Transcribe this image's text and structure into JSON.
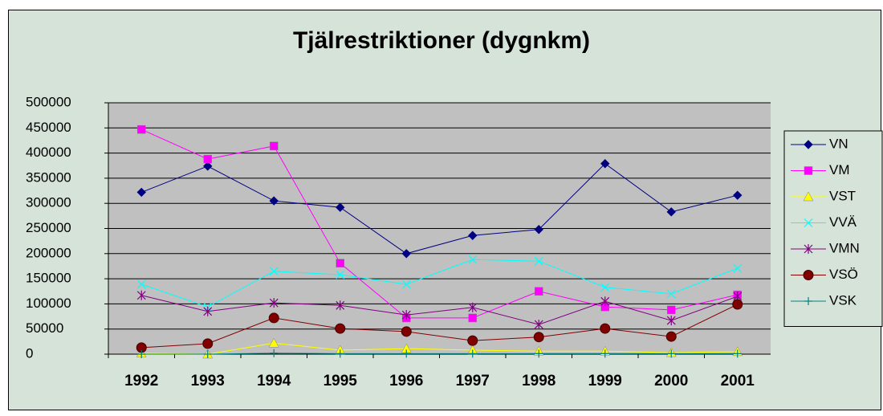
{
  "chart_data": {
    "type": "line",
    "title": "Tjälrestriktioner (dygnkm)",
    "categories": [
      "1992",
      "1993",
      "1994",
      "1995",
      "1996",
      "1997",
      "1998",
      "1999",
      "2000",
      "2001"
    ],
    "series": [
      {
        "name": "VN",
        "color": "#000080",
        "marker": "diamond",
        "values": [
          322000,
          374000,
          305000,
          292000,
          200000,
          236000,
          248000,
          379000,
          283000,
          316000
        ]
      },
      {
        "name": "VM",
        "color": "#ff00ff",
        "marker": "square",
        "values": [
          447000,
          388000,
          414000,
          181000,
          72000,
          72000,
          125000,
          94000,
          88000,
          118000
        ]
      },
      {
        "name": "VST",
        "color": "#ffff00",
        "marker": "triangle",
        "values": [
          2000,
          0,
          22000,
          8000,
          11000,
          8000,
          6000,
          6000,
          3000,
          5000
        ]
      },
      {
        "name": "VVÄ",
        "color": "#00ffff",
        "marker": "x",
        "values": [
          139000,
          94000,
          165000,
          158000,
          139000,
          188000,
          185000,
          133000,
          120000,
          171000
        ]
      },
      {
        "name": "VMN",
        "color": "#800080",
        "marker": "star",
        "values": [
          117000,
          85000,
          102000,
          97000,
          78000,
          93000,
          59000,
          105000,
          67000,
          115000
        ]
      },
      {
        "name": "VSÖ",
        "color": "#800000",
        "marker": "circle",
        "values": [
          13000,
          21000,
          72000,
          51000,
          45000,
          27000,
          34000,
          51000,
          35000,
          99000
        ]
      },
      {
        "name": "VSK",
        "color": "#008080",
        "marker": "plus",
        "values": [
          0,
          0,
          2000,
          1000,
          1000,
          1000,
          1000,
          1000,
          1000,
          1000
        ]
      }
    ],
    "ylim": [
      0,
      500000
    ],
    "yticks": [
      0,
      50000,
      100000,
      150000,
      200000,
      250000,
      300000,
      350000,
      400000,
      450000,
      500000
    ],
    "grid": true,
    "legend": "right"
  }
}
